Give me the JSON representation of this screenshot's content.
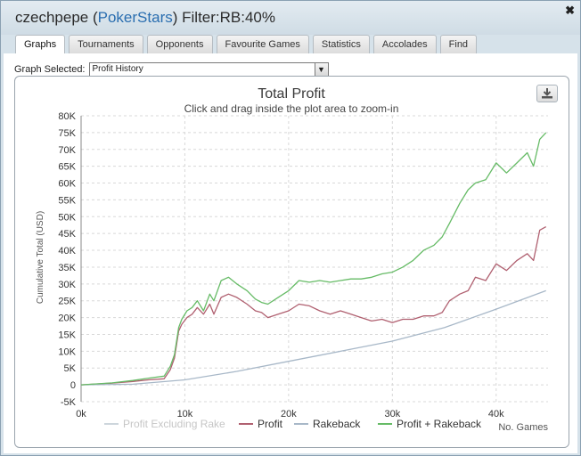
{
  "window": {
    "user": "czechpepe",
    "site_open": "(",
    "site": "PokerStars",
    "site_close": ")",
    "filter": "Filter:RB:40%",
    "close_glyph": "✖"
  },
  "tabs": [
    {
      "label": "Graphs",
      "active": true
    },
    {
      "label": "Tournaments",
      "active": false
    },
    {
      "label": "Opponents",
      "active": false
    },
    {
      "label": "Favourite Games",
      "active": false
    },
    {
      "label": "Statistics",
      "active": false
    },
    {
      "label": "Accolades",
      "active": false
    },
    {
      "label": "Find",
      "active": false
    }
  ],
  "graph_select": {
    "label": "Graph Selected:",
    "value": "Profit History",
    "arrow_icon": "chevron-down-icon"
  },
  "export_icon": "download-icon",
  "colors": {
    "profit_excluding_rake": "#cdd6dc",
    "profit": "#b06070",
    "rakeback": "#a8b8c8",
    "profit_plus_rakeback": "#66bb66",
    "grid": "#d8d8d8",
    "title": "#3a3a3a"
  },
  "chart_data": {
    "type": "line",
    "title": "Total Profit",
    "subtitle": "Click and drag inside the plot area to zoom-in",
    "xlabel": "No. Games",
    "ylabel": "Cumulative Total (USD)",
    "xlim": [
      0,
      45000
    ],
    "ylim": [
      -5000,
      80000
    ],
    "x_ticks": [
      0,
      10000,
      20000,
      30000,
      40000
    ],
    "x_tick_labels": [
      "0k",
      "10k",
      "20k",
      "30k",
      "40k"
    ],
    "y_ticks": [
      -5000,
      0,
      5000,
      10000,
      15000,
      20000,
      25000,
      30000,
      35000,
      40000,
      45000,
      50000,
      55000,
      60000,
      65000,
      70000,
      75000,
      80000
    ],
    "y_tick_labels": [
      "-5K",
      "0",
      "5K",
      "10K",
      "15K",
      "20K",
      "25K",
      "30K",
      "35K",
      "40K",
      "45K",
      "50K",
      "55K",
      "60K",
      "65K",
      "70K",
      "75K",
      "80K"
    ],
    "grid": true,
    "legend_position": "bottom",
    "series": [
      {
        "name": "Profit Excluding Rake",
        "hidden": true,
        "x": [],
        "y": []
      },
      {
        "name": "Profit",
        "x": [
          0,
          3000,
          5000,
          6500,
          8000,
          8600,
          9000,
          9400,
          9700,
          10200,
          10700,
          11200,
          11800,
          12400,
          12800,
          13500,
          14200,
          15000,
          16000,
          16800,
          17400,
          18000,
          19000,
          20000,
          21000,
          22000,
          23000,
          24000,
          25000,
          26000,
          27000,
          28000,
          29000,
          30000,
          31000,
          32000,
          33000,
          34000,
          34800,
          35500,
          36500,
          37300,
          38000,
          39000,
          40000,
          41000,
          42000,
          43000,
          43600,
          44200,
          44800
        ],
        "y": [
          0,
          500,
          1000,
          1500,
          1800,
          4500,
          8000,
          16000,
          18000,
          20000,
          21000,
          23000,
          21000,
          24000,
          21000,
          26000,
          27000,
          26000,
          24000,
          22000,
          21500,
          20000,
          21000,
          22000,
          24000,
          23500,
          22000,
          21000,
          22000,
          21000,
          20000,
          19000,
          19500,
          18500,
          19500,
          19500,
          20500,
          20500,
          21500,
          25000,
          27000,
          28000,
          32000,
          31000,
          36000,
          34000,
          37000,
          39000,
          37000,
          46000,
          47000
        ]
      },
      {
        "name": "Rakeback",
        "x": [
          0,
          5000,
          10000,
          15000,
          20000,
          25000,
          30000,
          35000,
          40000,
          44800
        ],
        "y": [
          0,
          200,
          1500,
          4000,
          7000,
          10000,
          13000,
          17000,
          22500,
          28000
        ]
      },
      {
        "name": "Profit + Rakeback",
        "x": [
          0,
          3000,
          5000,
          6500,
          8000,
          8600,
          9000,
          9400,
          9700,
          10200,
          10700,
          11200,
          11800,
          12400,
          12800,
          13500,
          14200,
          15000,
          16000,
          16800,
          17400,
          18000,
          19000,
          20000,
          21000,
          22000,
          23000,
          24000,
          25000,
          26000,
          27000,
          28000,
          29000,
          30000,
          31000,
          32000,
          33000,
          34000,
          34800,
          35500,
          36500,
          37300,
          38000,
          39000,
          40000,
          41000,
          42000,
          43000,
          43600,
          44200,
          44800
        ],
        "y": [
          0,
          600,
          1300,
          2000,
          2600,
          5500,
          9000,
          17000,
          19500,
          22000,
          23000,
          25000,
          22000,
          27000,
          25000,
          31000,
          32000,
          30000,
          28000,
          25500,
          24500,
          24000,
          26000,
          28000,
          31000,
          30500,
          31000,
          30500,
          31000,
          31500,
          31500,
          32000,
          33000,
          33500,
          35000,
          37000,
          40000,
          41500,
          44000,
          48000,
          54000,
          58000,
          60000,
          61000,
          66000,
          63000,
          66000,
          69000,
          65000,
          73000,
          75000
        ]
      }
    ]
  }
}
